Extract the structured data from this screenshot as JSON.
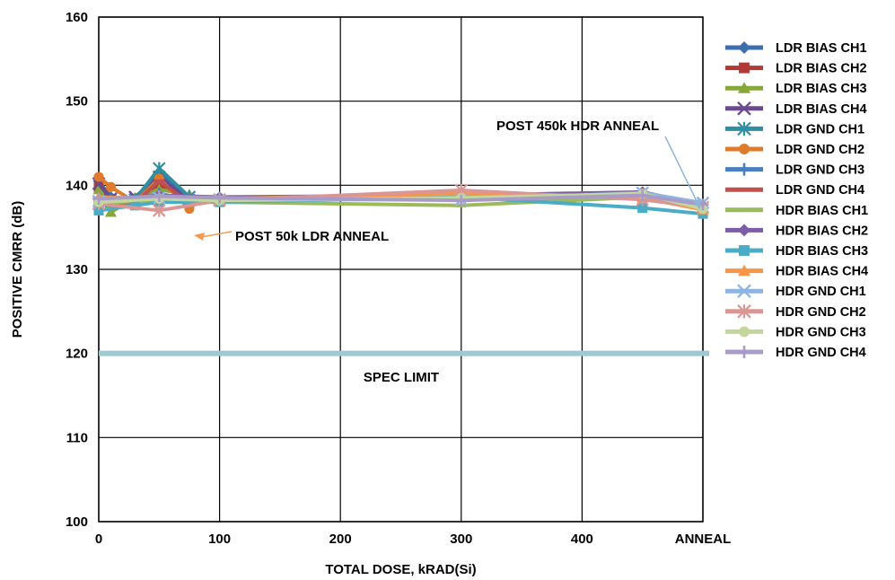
{
  "chart_data": {
    "type": "line",
    "title": "",
    "xlabel": "TOTAL DOSE, kRAD(Si)",
    "ylabel": "POSITIVE CMRR (dB)",
    "ylim": [
      100,
      160
    ],
    "yticks": [
      "100",
      "110",
      "120",
      "130",
      "140",
      "150",
      "160"
    ],
    "xticks": [
      {
        "x": 0,
        "label": "0"
      },
      {
        "x": 100,
        "label": "100"
      },
      {
        "x": 200,
        "label": "200"
      },
      {
        "x": 300,
        "label": "300"
      },
      {
        "x": 400,
        "label": "400"
      },
      {
        "x": 500,
        "label": "ANNEAL"
      }
    ],
    "xlim": [
      0,
      500
    ],
    "grid": true,
    "legend_position": "right",
    "spec_limit": {
      "label": "SPEC LIMIT",
      "value": 120,
      "color": "#9fc9d2"
    },
    "annotations": [
      {
        "text": "POST 50k LDR ANNEAL",
        "color": "#f39c4f"
      },
      {
        "text": "POST 450k HDR ANNEAL",
        "color": "#8fb3d9"
      }
    ],
    "series": [
      {
        "name": "LDR BIAS CH1",
        "color": "#3d6fae",
        "marker": "diamond",
        "x": [
          0,
          10,
          30,
          50,
          75
        ],
        "y": [
          140.5,
          138.6,
          138.2,
          141.5,
          138.4
        ]
      },
      {
        "name": "LDR BIAS CH2",
        "color": "#b23a36",
        "marker": "square",
        "x": [
          0,
          10,
          30,
          50,
          75
        ],
        "y": [
          139.8,
          138.3,
          138.0,
          140.2,
          138.1
        ]
      },
      {
        "name": "LDR BIAS CH3",
        "color": "#86a83a",
        "marker": "triangle",
        "x": [
          0,
          10,
          30,
          50,
          75
        ],
        "y": [
          139.5,
          136.8,
          138.5,
          139.5,
          138.9
        ]
      },
      {
        "name": "LDR BIAS CH4",
        "color": "#6a4a8f",
        "marker": "x",
        "x": [
          0,
          10,
          30,
          50,
          75
        ],
        "y": [
          140.2,
          138.4,
          138.6,
          141.0,
          138.2
        ]
      },
      {
        "name": "LDR GND CH1",
        "color": "#2e8fa3",
        "marker": "star",
        "x": [
          0,
          10,
          30,
          50,
          75
        ],
        "y": [
          137.8,
          138.1,
          138.3,
          142.0,
          138.6
        ]
      },
      {
        "name": "LDR GND CH2",
        "color": "#e07b2c",
        "marker": "circle",
        "x": [
          0,
          10,
          30,
          50,
          75
        ],
        "y": [
          141.0,
          139.8,
          138.0,
          140.8,
          137.2
        ]
      },
      {
        "name": "LDR GND CH3",
        "color": "#4a7fc1",
        "marker": "plus",
        "x": [
          0,
          10,
          30,
          50,
          75
        ],
        "y": [
          138.5,
          138.2,
          138.1,
          139.0,
          138.3
        ]
      },
      {
        "name": "LDR GND CH4",
        "color": "#c0504d",
        "marker": "dash",
        "x": [
          0,
          10,
          30,
          50,
          75
        ],
        "y": [
          138.2,
          138.0,
          137.9,
          140.5,
          137.9
        ]
      },
      {
        "name": "HDR BIAS CH1",
        "color": "#9bbb59",
        "marker": "dash",
        "x": [
          0,
          50,
          100,
          300,
          450,
          500
        ],
        "y": [
          137.9,
          138.2,
          138.0,
          137.6,
          138.6,
          137.3
        ]
      },
      {
        "name": "HDR BIAS CH2",
        "color": "#7b5ea7",
        "marker": "diamond",
        "x": [
          0,
          50,
          100,
          300,
          450,
          500
        ],
        "y": [
          138.3,
          138.8,
          138.6,
          138.8,
          139.2,
          137.6
        ]
      },
      {
        "name": "HDR BIAS CH3",
        "color": "#4bacc6",
        "marker": "square",
        "x": [
          0,
          30,
          50,
          100,
          300,
          450,
          500
        ],
        "y": [
          137.0,
          137.6,
          138.0,
          138.0,
          138.6,
          137.3,
          136.6
        ]
      },
      {
        "name": "HDR BIAS CH4",
        "color": "#f79646",
        "marker": "triangle",
        "x": [
          0,
          50,
          100,
          300,
          450,
          500
        ],
        "y": [
          138.6,
          138.4,
          138.4,
          139.0,
          138.5,
          137.1
        ]
      },
      {
        "name": "HDR GND CH1",
        "color": "#8eb4e3",
        "marker": "x",
        "x": [
          0,
          50,
          100,
          300,
          450,
          500
        ],
        "y": [
          138.1,
          138.5,
          138.3,
          138.3,
          139.1,
          137.9
        ]
      },
      {
        "name": "HDR GND CH2",
        "color": "#d99694",
        "marker": "star",
        "x": [
          0,
          50,
          100,
          300,
          450,
          500
        ],
        "y": [
          137.8,
          137.0,
          138.2,
          139.4,
          138.3,
          137.4
        ]
      },
      {
        "name": "HDR GND CH3",
        "color": "#c3d69b",
        "marker": "circle",
        "x": [
          0,
          50,
          100,
          300,
          450,
          500
        ],
        "y": [
          138.0,
          138.4,
          138.2,
          138.5,
          139.0,
          137.2
        ]
      },
      {
        "name": "HDR GND CH4",
        "color": "#a99bc8",
        "marker": "plus",
        "x": [
          0,
          50,
          100,
          300,
          450,
          500
        ],
        "y": [
          138.4,
          138.7,
          138.5,
          138.2,
          138.8,
          137.7
        ]
      }
    ]
  }
}
